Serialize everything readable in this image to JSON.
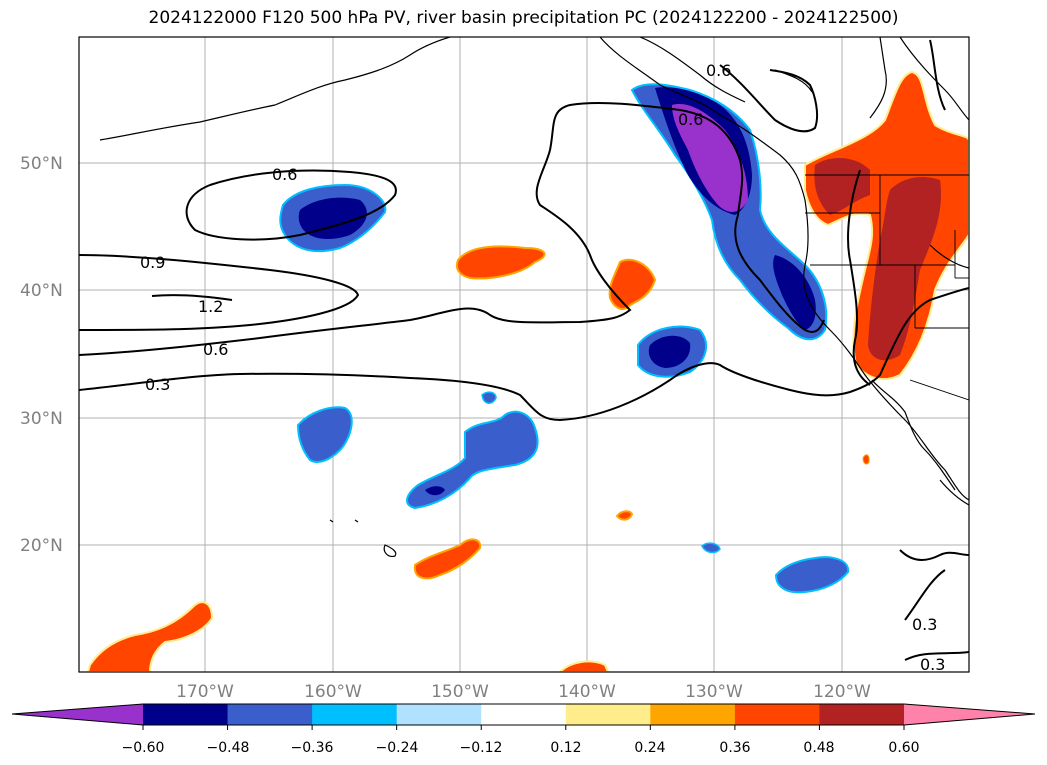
{
  "title": "2024122000 F120 500 hPa PV, river basin precipitation PC (2024122200 - 2024122500)",
  "map": {
    "lat_labels": [
      "50°N",
      "40°N",
      "30°N",
      "20°N"
    ],
    "lon_labels": [
      "170°W",
      "160°W",
      "150°W",
      "140°W",
      "130°W",
      "120°W"
    ],
    "contour_labels": [
      "0.6",
      "0.9",
      "1.2",
      "0.6",
      "0.3",
      "0.6",
      "0.3",
      "0.3",
      "0.6"
    ]
  },
  "colorbar": {
    "ticks": [
      "−0.60",
      "−0.48",
      "−0.36",
      "−0.24",
      "−0.12",
      "0.12",
      "0.24",
      "0.36",
      "0.48",
      "0.60"
    ],
    "colors": [
      "#9932cc",
      "#00008b",
      "#3a5fcd",
      "#00bfff",
      "#b0e2ff",
      "#ffffff",
      "#ffec8b",
      "#ffa500",
      "#ff4500",
      "#b22222",
      "#ff82ab"
    ]
  },
  "colors": {
    "negative_strong": "#9932cc",
    "negative_dark": "#00008b",
    "negative_mid": "#3a5fcd",
    "negative_light": "#00bfff",
    "positive_mid": "#ff4500",
    "positive_dark": "#b22222",
    "positive_light": "#ffec8b"
  }
}
